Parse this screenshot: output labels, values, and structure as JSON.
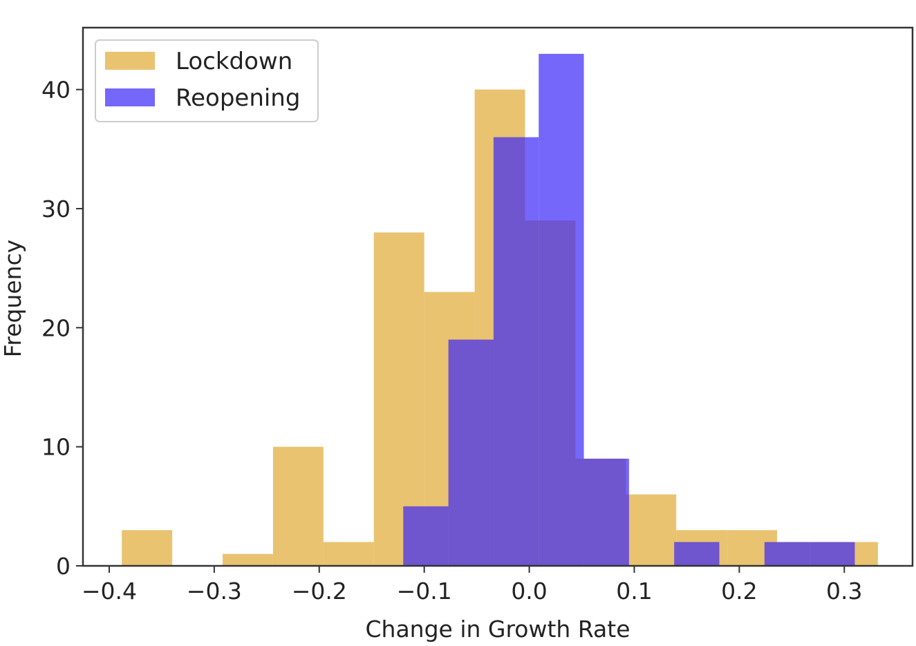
{
  "chart_data": {
    "type": "histogram",
    "title": "",
    "xlabel": "Change in Growth Rate",
    "ylabel": "Frequency",
    "xlim": [
      -0.425,
      0.365
    ],
    "ylim": [
      0,
      45.2
    ],
    "xticks": [
      -0.4,
      -0.3,
      -0.2,
      -0.1,
      0.0,
      0.1,
      0.2,
      0.3
    ],
    "xtick_labels": [
      "−0.4",
      "−0.3",
      "−0.2",
      "−0.1",
      "0.0",
      "0.1",
      "0.2",
      "0.3"
    ],
    "yticks": [
      0,
      10,
      20,
      30,
      40
    ],
    "ytick_labels": [
      "0",
      "10",
      "20",
      "30",
      "40"
    ],
    "grid": false,
    "legend_position": "top-left",
    "series": [
      {
        "name": "Lockdown",
        "color": "#E3B44C",
        "opacity": 0.8,
        "bin_edges": [
          -0.388,
          -0.34,
          -0.292,
          -0.244,
          -0.196,
          -0.148,
          -0.1,
          -0.052,
          -0.004,
          0.044,
          0.092,
          0.14,
          0.188,
          0.236,
          0.284,
          0.332
        ],
        "counts": [
          3,
          0,
          1,
          10,
          2,
          28,
          23,
          40,
          29,
          9,
          6,
          3,
          3,
          2,
          2
        ]
      },
      {
        "name": "Reopening",
        "color": "#3A26F6",
        "opacity": 0.7,
        "bin_edges": [
          -0.12,
          -0.077,
          -0.034,
          0.009,
          0.052,
          0.095,
          0.138,
          0.181,
          0.224,
          0.267,
          0.31
        ],
        "counts": [
          5,
          19,
          36,
          43,
          9,
          0,
          2,
          0,
          2,
          2
        ]
      }
    ]
  }
}
